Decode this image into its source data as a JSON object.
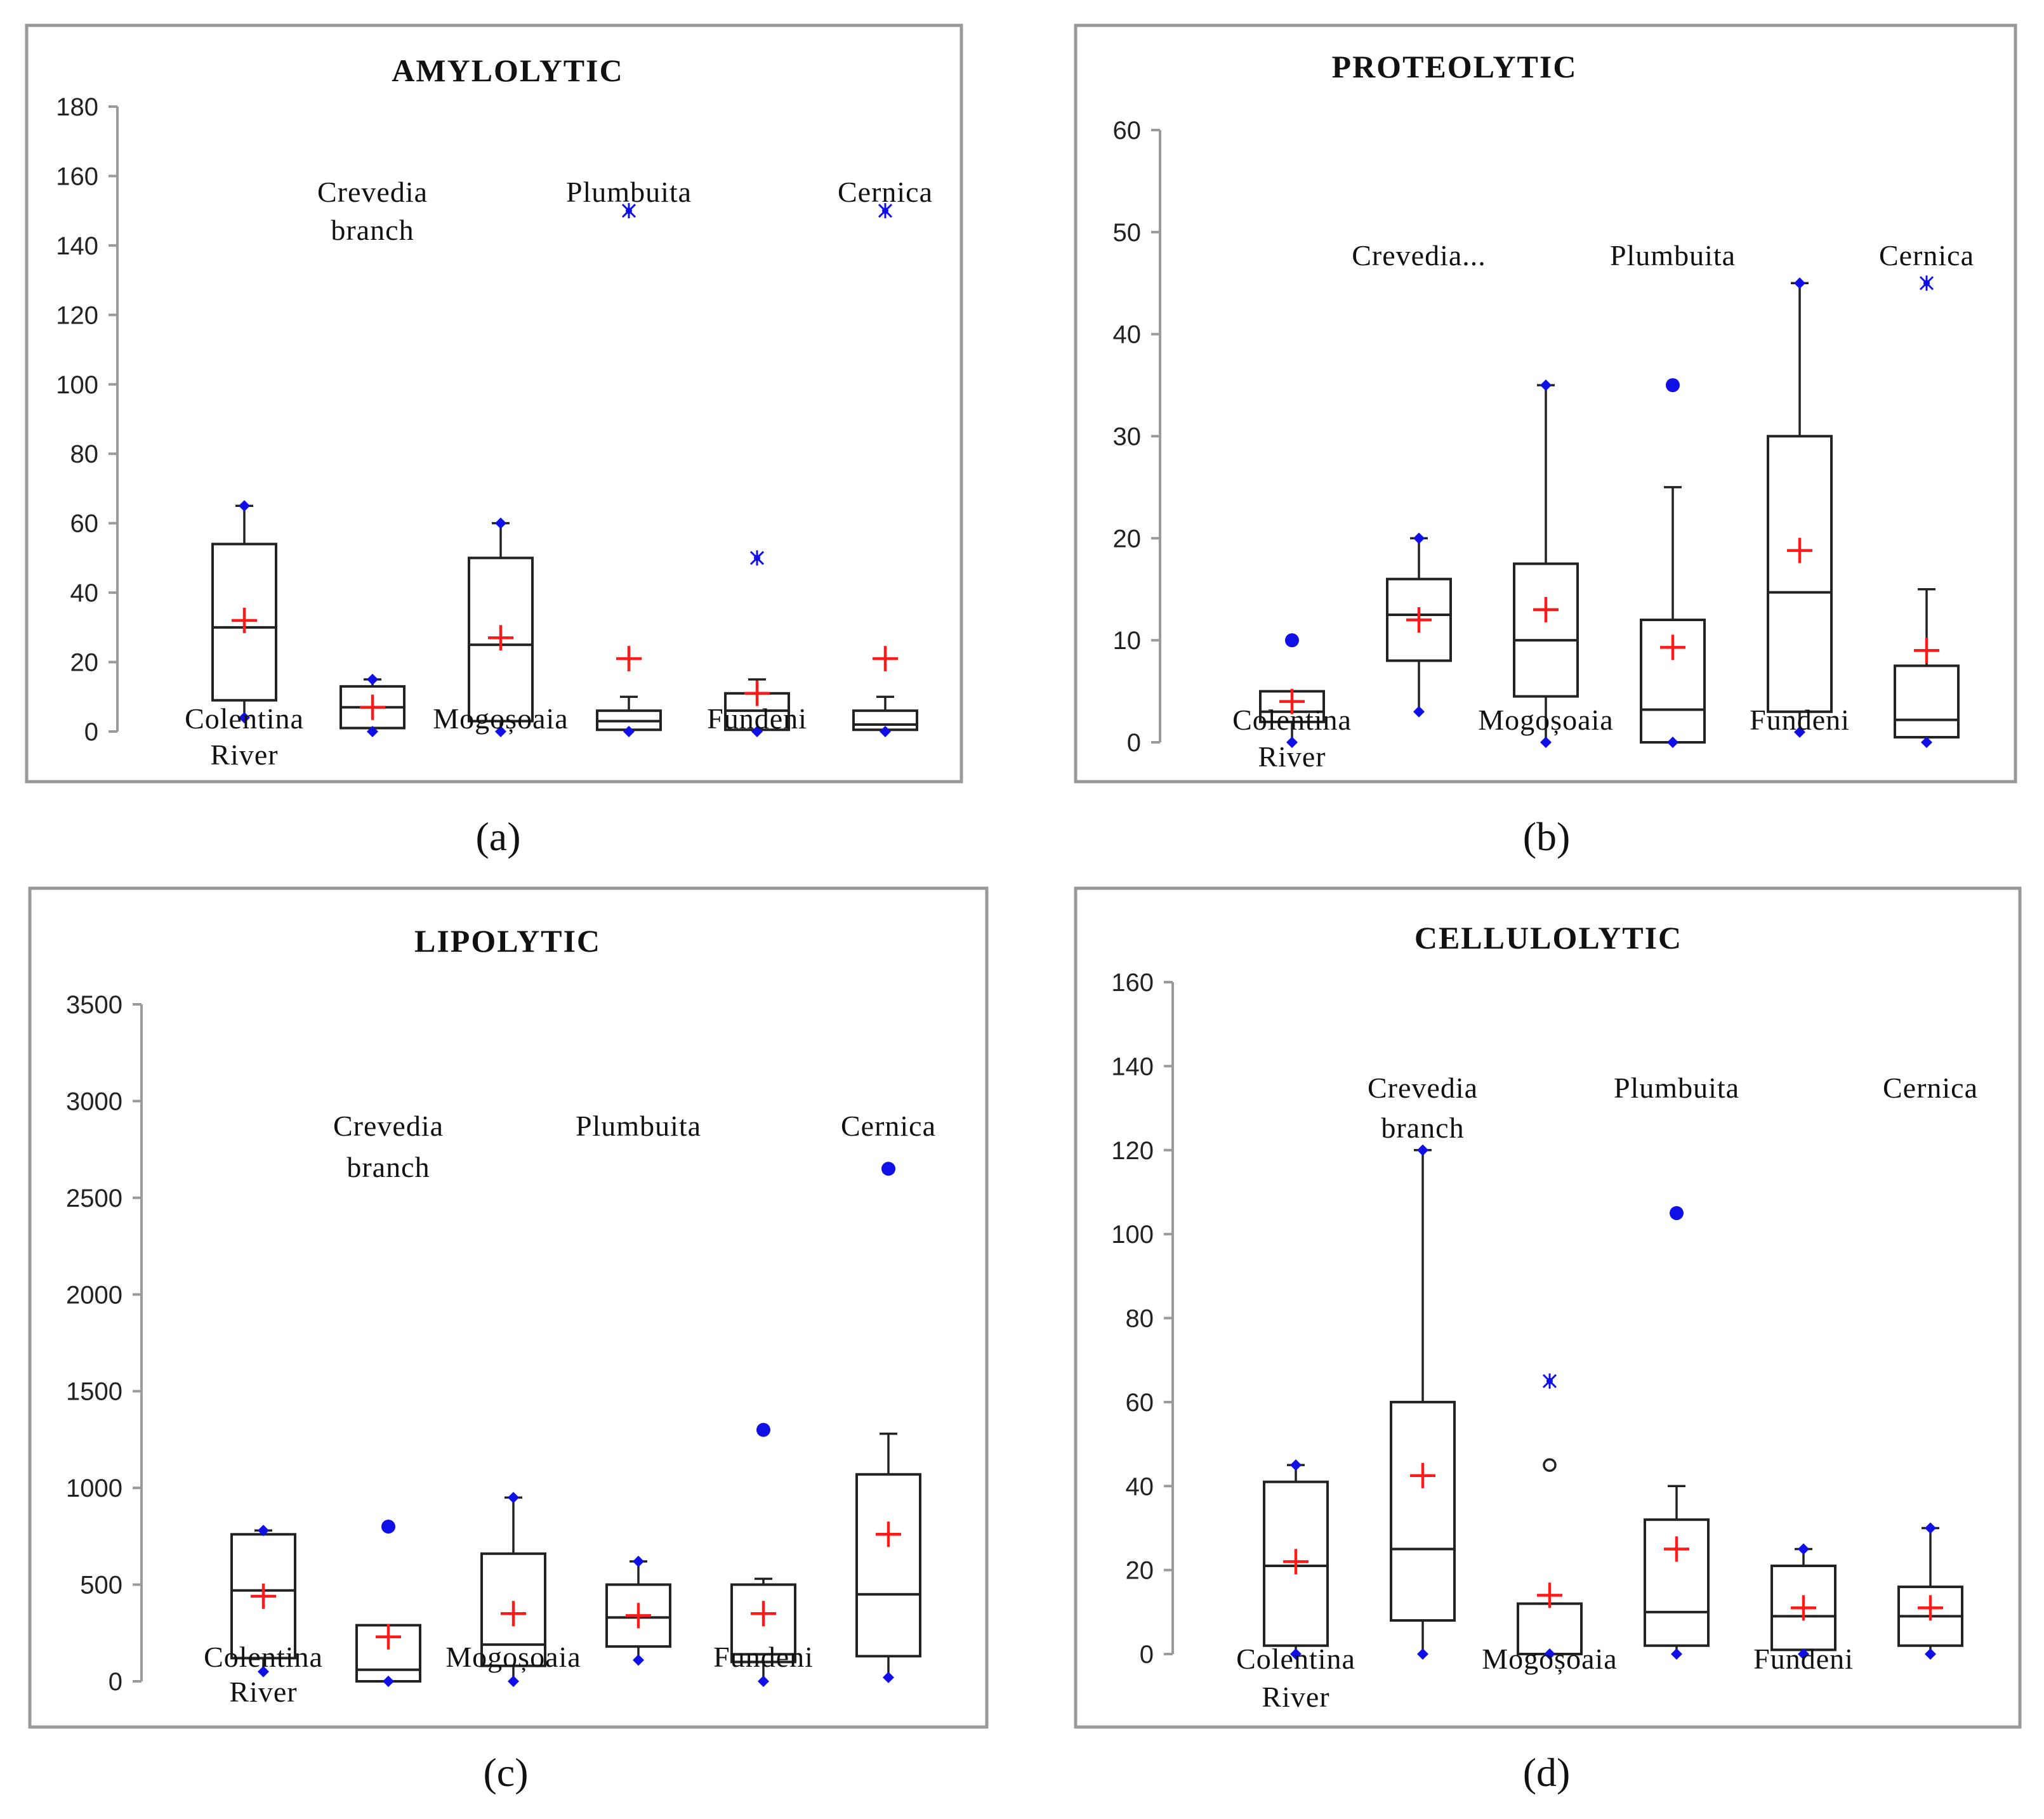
{
  "panels": [
    {
      "letter": "(a)",
      "chart_data": {
        "type": "box",
        "title": "AMYLOLYTIC",
        "ylim": [
          0,
          180
        ],
        "yticks": [
          0,
          20,
          40,
          60,
          80,
          100,
          120,
          140,
          160,
          180
        ],
        "categories": [
          "Colentina River",
          "Crevedia branch",
          "Mogoșoaia",
          "Plumbuita",
          "Fundeni",
          "Cernica"
        ],
        "labels": [
          {
            "lines": [
              "Colentina",
              "River"
            ],
            "pos": "bottom"
          },
          {
            "lines": [
              "Crevedia",
              "branch"
            ],
            "pos": "top"
          },
          {
            "lines": [
              "Mogoșoaia"
            ],
            "pos": "bottom"
          },
          {
            "lines": [
              "Plumbuita"
            ],
            "pos": "top"
          },
          {
            "lines": [
              "Fundeni"
            ],
            "pos": "bottom"
          },
          {
            "lines": [
              "Cernica"
            ],
            "pos": "top"
          }
        ],
        "boxes": [
          {
            "q1": 9,
            "median": 30,
            "q3": 54,
            "wlow": 4,
            "whigh": 65,
            "mean": 32,
            "min": 4,
            "max": 65
          },
          {
            "q1": 1,
            "median": 7,
            "q3": 13,
            "wlow": 0,
            "whigh": 15,
            "mean": 7,
            "min": 0,
            "max": 15
          },
          {
            "q1": 3,
            "median": 25,
            "q3": 50,
            "wlow": 0,
            "whigh": 60,
            "mean": 27,
            "min": 0,
            "max": 60
          },
          {
            "q1": 0.5,
            "median": 3,
            "q3": 6,
            "wlow": 0,
            "whigh": 10,
            "mean": 21,
            "min": 0,
            "extremes": [
              150
            ]
          },
          {
            "q1": 0.5,
            "median": 6,
            "q3": 11,
            "wlow": 0,
            "whigh": 15,
            "mean": 11,
            "min": 0,
            "extremes": [
              50
            ]
          },
          {
            "q1": 0.5,
            "median": 2,
            "q3": 6,
            "wlow": 0,
            "whigh": 10,
            "mean": 21,
            "min": 0,
            "extremes": [
              150
            ]
          }
        ]
      }
    },
    {
      "letter": "(b)",
      "chart_data": {
        "type": "box",
        "title": "PROTEOLYTIC",
        "ylim": [
          0,
          60
        ],
        "yticks": [
          0,
          10,
          20,
          30,
          40,
          50,
          60
        ],
        "categories": [
          "Colentina River",
          "Crevedia...",
          "Mogoșoaia",
          "Plumbuita",
          "Fundeni",
          "Cernica"
        ],
        "labels": [
          {
            "lines": [
              "Colentina",
              "River"
            ],
            "pos": "bottom"
          },
          {
            "lines": [
              "Crevedia..."
            ],
            "pos": "top"
          },
          {
            "lines": [
              "Mogoșoaia"
            ],
            "pos": "bottom"
          },
          {
            "lines": [
              "Plumbuita"
            ],
            "pos": "top"
          },
          {
            "lines": [
              "Fundeni"
            ],
            "pos": "bottom"
          },
          {
            "lines": [
              "Cernica"
            ],
            "pos": "top"
          }
        ],
        "boxes": [
          {
            "q1": 2,
            "median": 3,
            "q3": 5,
            "wlow": 0,
            "whigh": 5,
            "mean": 4,
            "min": 0,
            "outliers": [
              10
            ]
          },
          {
            "q1": 8,
            "median": 12.5,
            "q3": 16,
            "wlow": 3,
            "whigh": 20,
            "mean": 12,
            "min": 3,
            "max": 20
          },
          {
            "q1": 4.5,
            "median": 10,
            "q3": 17.5,
            "wlow": 0,
            "whigh": 35,
            "mean": 13,
            "min": 0,
            "max": 35
          },
          {
            "q1": 0,
            "median": 3.2,
            "q3": 12,
            "wlow": 0,
            "whigh": 25,
            "mean": 9.3,
            "min": 0,
            "outliers": [
              35
            ]
          },
          {
            "q1": 3,
            "median": 14.7,
            "q3": 30,
            "wlow": 1,
            "whigh": 45,
            "mean": 18.8,
            "min": 1,
            "max": 45
          },
          {
            "q1": 0.5,
            "median": 2.2,
            "q3": 7.5,
            "wlow": 0,
            "whigh": 15,
            "mean": 9,
            "min": 0,
            "extremes": [
              45
            ]
          }
        ]
      }
    },
    {
      "letter": "(c)",
      "chart_data": {
        "type": "box",
        "title": "LIPOLYTIC",
        "ylim": [
          0,
          3500
        ],
        "yticks": [
          0,
          500,
          1000,
          1500,
          2000,
          2500,
          3000,
          3500
        ],
        "categories": [
          "Colentina River",
          "Crevedia branch",
          "Mogoșoaia",
          "Plumbuita",
          "Fundeni",
          "Cernica"
        ],
        "labels": [
          {
            "lines": [
              "Colentina",
              "River"
            ],
            "pos": "bottom"
          },
          {
            "lines": [
              "Crevedia",
              "branch"
            ],
            "pos": "top"
          },
          {
            "lines": [
              "Mogoșoaia"
            ],
            "pos": "bottom"
          },
          {
            "lines": [
              "Plumbuita"
            ],
            "pos": "top"
          },
          {
            "lines": [
              "Fundeni"
            ],
            "pos": "bottom"
          },
          {
            "lines": [
              "Cernica"
            ],
            "pos": "top"
          }
        ],
        "boxes": [
          {
            "q1": 120,
            "median": 470,
            "q3": 760,
            "wlow": 50,
            "whigh": 780,
            "mean": 440,
            "min": 50,
            "max": 780
          },
          {
            "q1": 0,
            "median": 60,
            "q3": 290,
            "wlow": 0,
            "whigh": 290,
            "mean": 230,
            "min": 0,
            "outliers": [
              800
            ]
          },
          {
            "q1": 80,
            "median": 190,
            "q3": 660,
            "wlow": 0,
            "whigh": 950,
            "mean": 350,
            "min": 0,
            "max": 950
          },
          {
            "q1": 180,
            "median": 330,
            "q3": 500,
            "wlow": 110,
            "whigh": 620,
            "mean": 340,
            "min": 110,
            "max": 620
          },
          {
            "q1": 100,
            "median": 140,
            "q3": 500,
            "wlow": 0,
            "whigh": 530,
            "mean": 350,
            "min": 0,
            "outliers": [
              1300
            ]
          },
          {
            "q1": 130,
            "median": 450,
            "q3": 1070,
            "wlow": 20,
            "whigh": 1280,
            "mean": 760,
            "min": 20,
            "outliers": [
              2650
            ]
          }
        ]
      }
    },
    {
      "letter": "(d)",
      "chart_data": {
        "type": "box",
        "title": "CELLULOLYTIC",
        "ylim": [
          0,
          160
        ],
        "yticks": [
          0,
          20,
          40,
          60,
          80,
          100,
          120,
          140,
          160
        ],
        "categories": [
          "Colentina River",
          "Crevedia branch",
          "Mogoșoaia",
          "Plumbuita",
          "Fundeni",
          "Cernica"
        ],
        "labels": [
          {
            "lines": [
              "Colentina",
              "River"
            ],
            "pos": "bottom"
          },
          {
            "lines": [
              "Crevedia",
              "branch"
            ],
            "pos": "top"
          },
          {
            "lines": [
              "Mogoșoaia"
            ],
            "pos": "bottom"
          },
          {
            "lines": [
              "Plumbuita"
            ],
            "pos": "top"
          },
          {
            "lines": [
              "Fundeni"
            ],
            "pos": "bottom"
          },
          {
            "lines": [
              "Cernica"
            ],
            "pos": "top"
          }
        ],
        "boxes": [
          {
            "q1": 2,
            "median": 21,
            "q3": 41,
            "wlow": 0,
            "whigh": 45,
            "mean": 22,
            "min": 0,
            "max": 45
          },
          {
            "q1": 8,
            "median": 25,
            "q3": 60,
            "wlow": 0,
            "whigh": 120,
            "mean": 42.5,
            "min": 0,
            "max": 120
          },
          {
            "q1": 0,
            "median": 0,
            "q3": 12,
            "wlow": 0,
            "whigh": 12,
            "mean": 14,
            "min": 0,
            "open_outliers": [
              45
            ],
            "extremes": [
              65
            ]
          },
          {
            "q1": 2,
            "median": 10,
            "q3": 32,
            "wlow": 0,
            "whigh": 40,
            "mean": 25,
            "min": 0,
            "outliers": [
              105
            ]
          },
          {
            "q1": 1,
            "median": 9,
            "q3": 21,
            "wlow": 0,
            "whigh": 25,
            "mean": 11,
            "min": 0,
            "max": 25
          },
          {
            "q1": 2,
            "median": 9,
            "q3": 16,
            "wlow": 0,
            "whigh": 30,
            "mean": 11,
            "min": 0,
            "max": 30
          }
        ]
      }
    }
  ]
}
